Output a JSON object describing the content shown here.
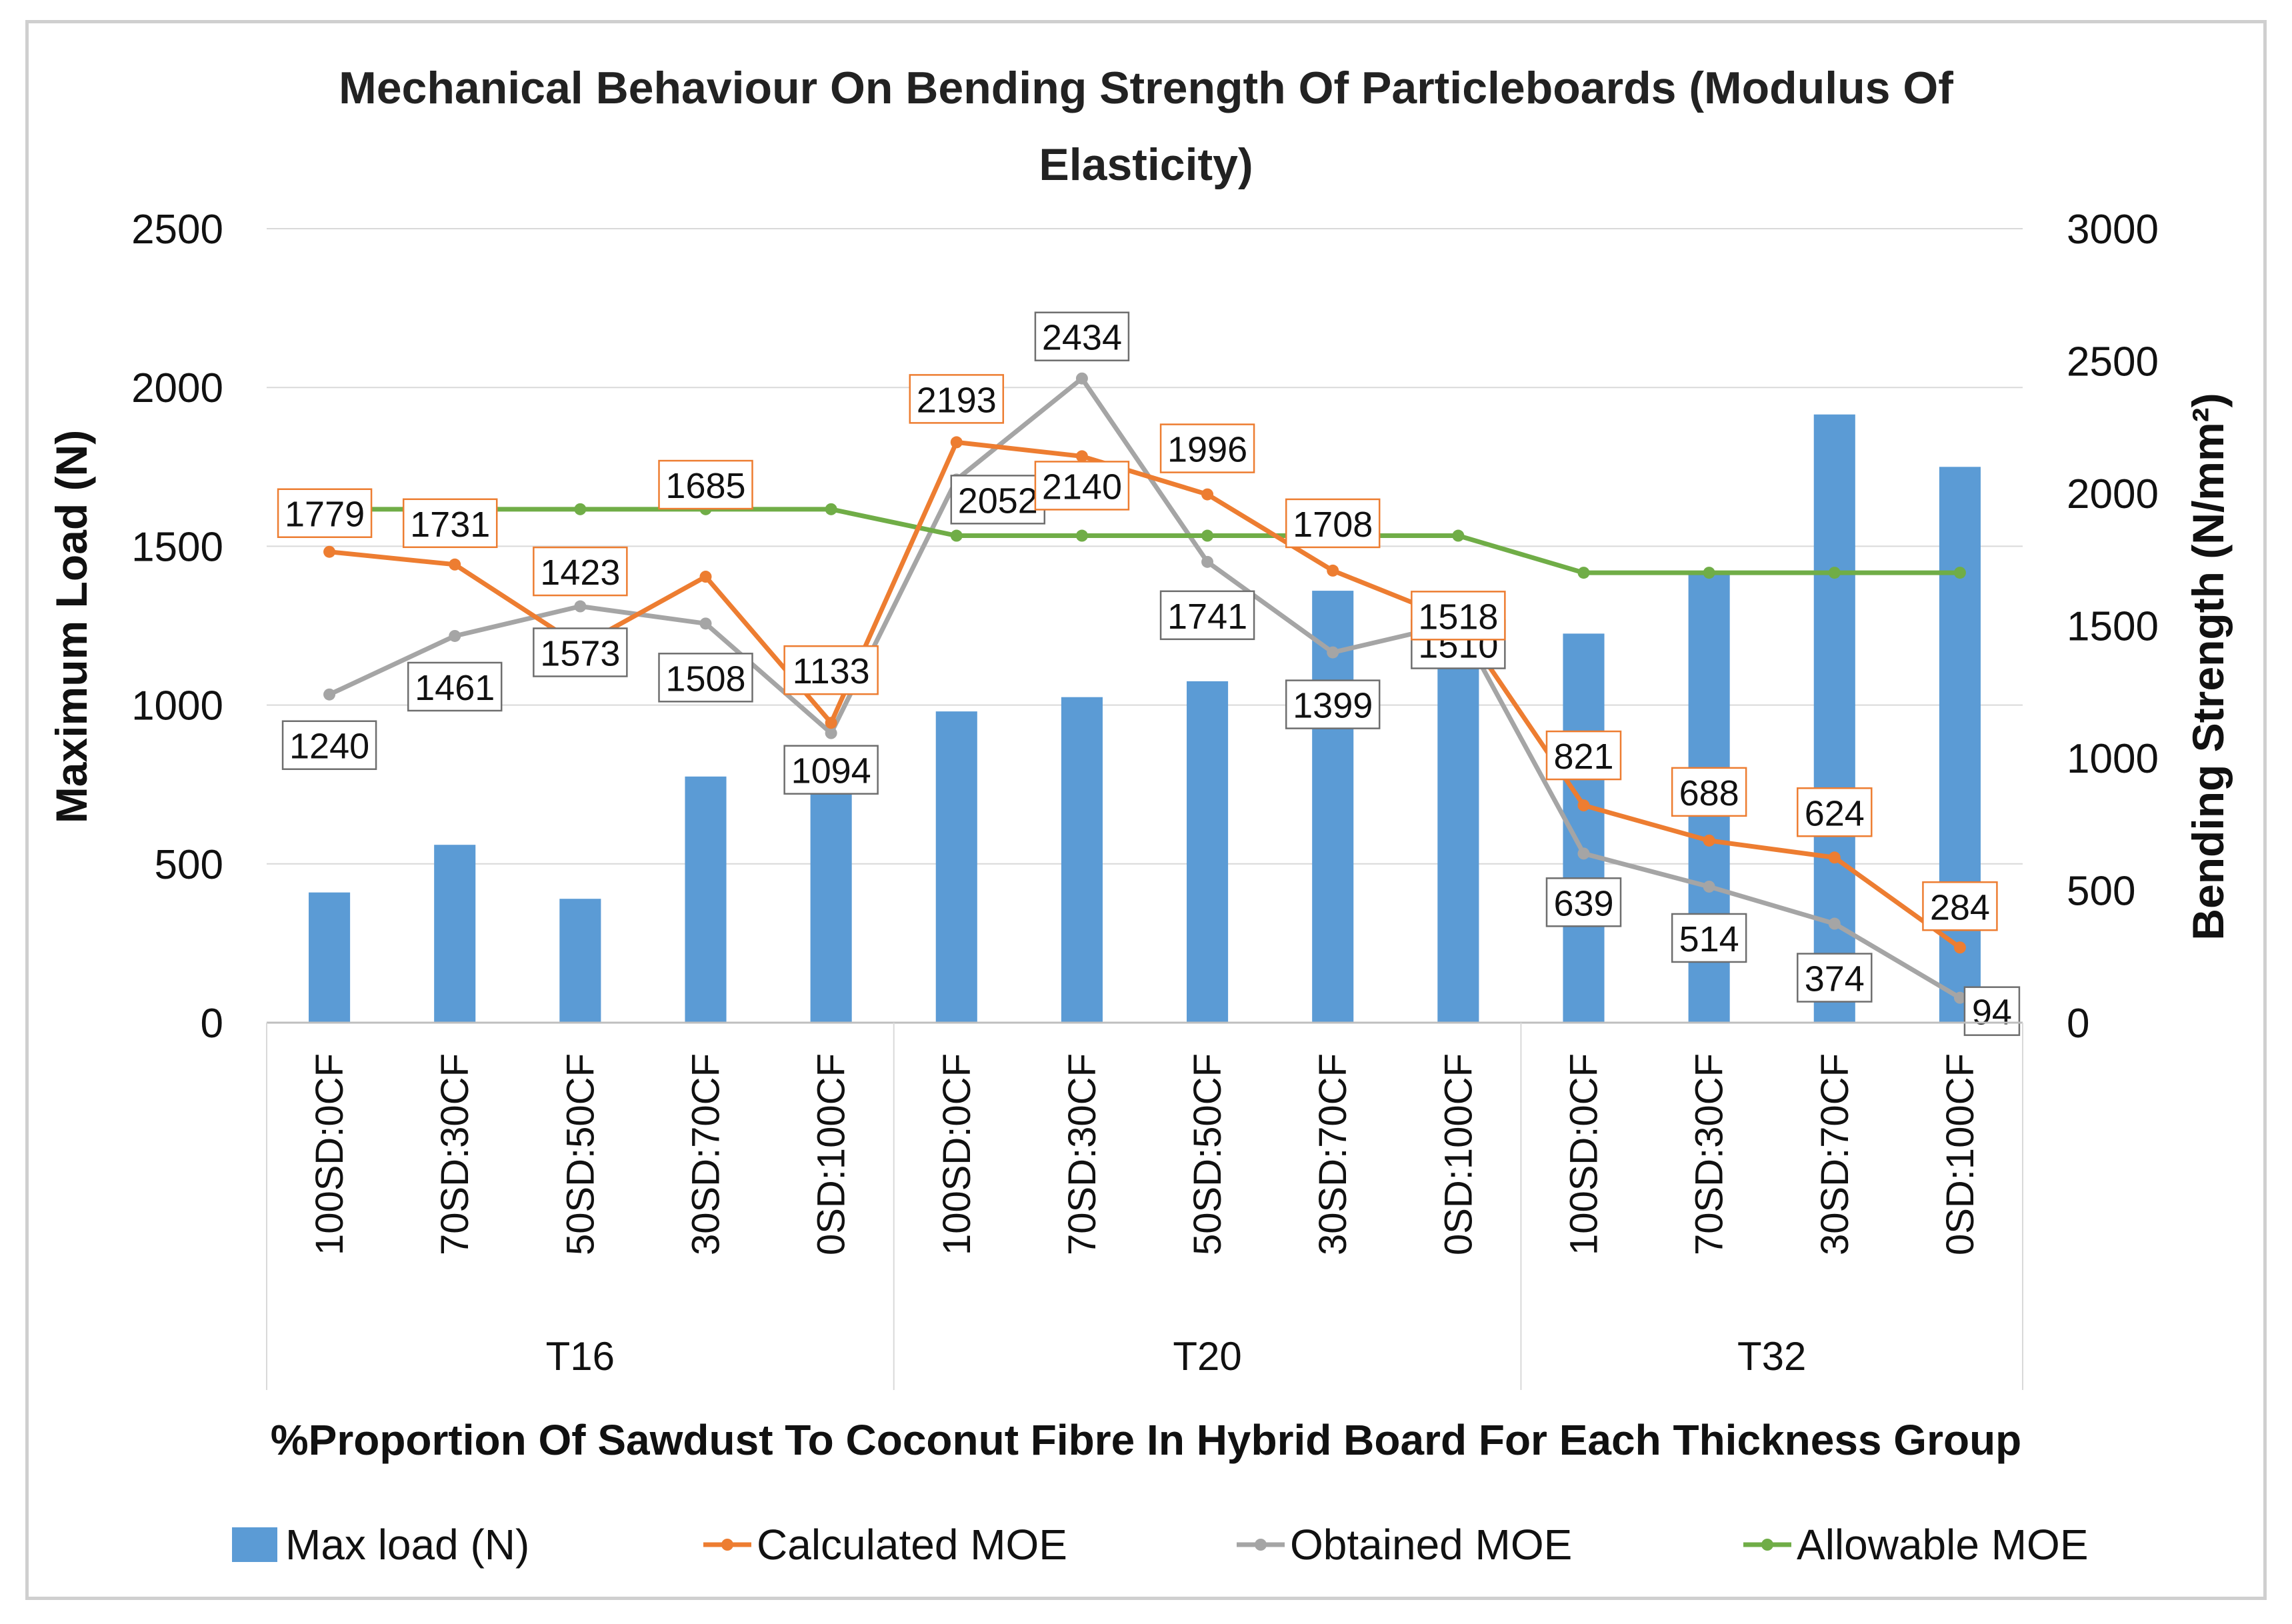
{
  "chart_data": {
    "type": "bar",
    "title": "Mechanical Behaviour On Bending Strength Of Particleboards (Modulus Of Elasticity)",
    "title_lines": [
      "Mechanical Behaviour On Bending Strength Of Particleboards (Modulus Of",
      "Elasticity)"
    ],
    "xlabel": "%Proportion Of Sawdust To Coconut Fibre In Hybrid Board For Each Thickness Group",
    "ylabel": "Maximum Load (N)",
    "y2label": "Bending Strength (N/mm²)",
    "ylim": [
      0,
      2500
    ],
    "y2lim": [
      0,
      3000
    ],
    "y_ticks": [
      "0",
      "500",
      "1000",
      "1500",
      "2000",
      "2500"
    ],
    "y2_ticks": [
      "0",
      "500",
      "1000",
      "1500",
      "2000",
      "2500",
      "3000"
    ],
    "grid": true,
    "legend_position": "bottom",
    "categories": [
      "100SD:0CF",
      "70SD:30CF",
      "50SD:50CF",
      "30SD:70CF",
      "0SD:100CF",
      "100SD:0CF",
      "70SD:30CF",
      "50SD:50CF",
      "30SD:70CF",
      "0SD:100CF",
      "100SD:0CF",
      "70SD:30CF",
      "30SD:70CF",
      "0SD:100CF"
    ],
    "groups": [
      {
        "name": "T16",
        "count": 5
      },
      {
        "name": "T20",
        "count": 5
      },
      {
        "name": "T32",
        "count": 4
      }
    ],
    "series": [
      {
        "name": "Max load (N)",
        "type": "bar",
        "axis": "left",
        "color": "#5b9bd5",
        "values": [
          410,
          560,
          390,
          775,
          790,
          980,
          1025,
          1075,
          1360,
          1295,
          1225,
          1415,
          1915,
          1750
        ]
      },
      {
        "name": "Calculated MOE",
        "type": "line",
        "axis": "right",
        "color": "#ed7d31",
        "values": [
          1779,
          1731,
          1423,
          1685,
          1133,
          2193,
          2140,
          1996,
          1708,
          1518,
          821,
          688,
          624,
          284
        ],
        "labels": [
          "1779",
          "1731",
          "1423",
          "1685",
          "1133",
          "2193",
          "2140",
          "1996",
          "1708",
          "1518",
          "821",
          "688",
          "624",
          "284"
        ]
      },
      {
        "name": "Obtained MOE",
        "type": "line",
        "axis": "right",
        "color": "#a5a5a5",
        "values": [
          1240,
          1461,
          1573,
          1508,
          1094,
          2052,
          2434,
          1741,
          1399,
          1510,
          639,
          514,
          374,
          94
        ],
        "labels": [
          "1240",
          "1461",
          "1573",
          "1508",
          "1094",
          "2052",
          "2434",
          "1741",
          "1399",
          "1510",
          "639",
          "514",
          "374",
          "94"
        ]
      },
      {
        "name": "Allowable MOE",
        "type": "line",
        "axis": "right",
        "color": "#70ad47",
        "values": [
          1940,
          1940,
          1940,
          1940,
          1940,
          1840,
          1840,
          1840,
          1840,
          1840,
          1700,
          1700,
          1700,
          1700
        ]
      }
    ]
  }
}
